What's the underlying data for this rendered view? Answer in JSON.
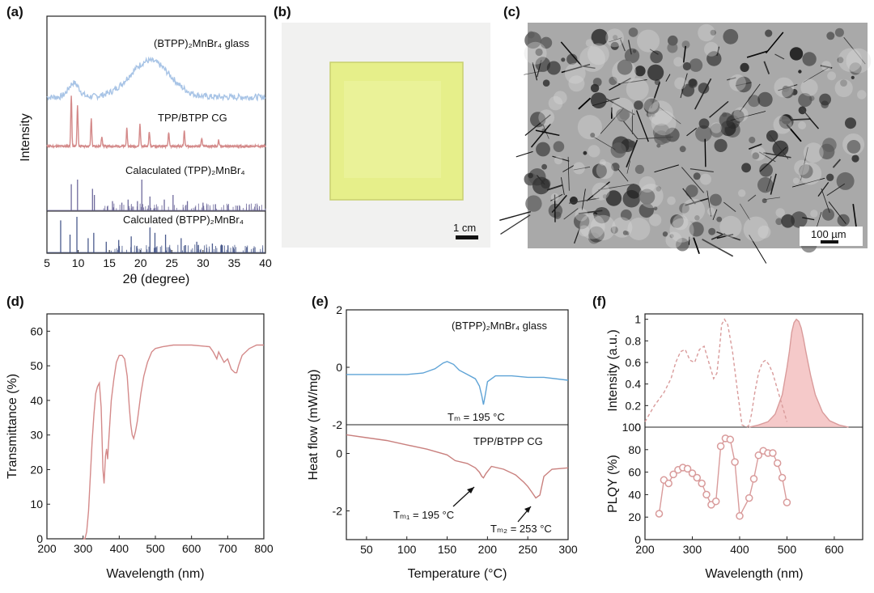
{
  "panel_labels": {
    "a": "(a)",
    "b": "(b)",
    "c": "(c)",
    "d": "(d)",
    "e": "(e)",
    "f": "(f)"
  },
  "colors": {
    "blue": "#a8c4e6",
    "red": "#d48a8a",
    "purple": "#6f6a9c",
    "navy": "#4a5a8c",
    "pink": "#d99b9b",
    "photo_yellow": "#e8f07a"
  },
  "photos": {
    "b_scale": "1 cm",
    "c_scale": "100 µm"
  },
  "chart_data": [
    {
      "id": "a",
      "type": "line",
      "xlabel": "2θ (degree)",
      "ylabel": "Intensity",
      "xlim": [
        5,
        40
      ],
      "xticks": [
        5,
        10,
        15,
        20,
        25,
        30,
        35,
        40
      ],
      "series": [
        {
          "name": "(BTPP)₂MnBr₄ glass",
          "kind": "broad",
          "peaks": [
            {
              "x": 9.3,
              "h": 0.35,
              "w": 1.2
            },
            {
              "x": 21.5,
              "h": 0.9,
              "w": 4.5
            }
          ]
        },
        {
          "name": "TPP/BTPP CG",
          "kind": "sharp",
          "peaks": [
            {
              "x": 8.9,
              "h": 1.0
            },
            {
              "x": 9.9,
              "h": 0.8
            },
            {
              "x": 12.1,
              "h": 0.55
            },
            {
              "x": 13.8,
              "h": 0.2
            },
            {
              "x": 17.8,
              "h": 0.35
            },
            {
              "x": 19.9,
              "h": 0.45
            },
            {
              "x": 21.4,
              "h": 0.3
            },
            {
              "x": 24.5,
              "h": 0.28
            },
            {
              "x": 27.0,
              "h": 0.3
            },
            {
              "x": 29.8,
              "h": 0.15
            },
            {
              "x": 32.5,
              "h": 0.12
            }
          ]
        },
        {
          "name": "Calaculated (TPP)₂MnBr₄",
          "kind": "stick",
          "peaks": [
            {
              "x": 8.9,
              "h": 0.85
            },
            {
              "x": 9.9,
              "h": 1.0
            },
            {
              "x": 12.3,
              "h": 0.7
            },
            {
              "x": 12.6,
              "h": 0.5
            },
            {
              "x": 15.5,
              "h": 0.3
            },
            {
              "x": 17.0,
              "h": 0.25
            },
            {
              "x": 18.0,
              "h": 0.35
            },
            {
              "x": 19.5,
              "h": 0.3
            },
            {
              "x": 20.2,
              "h": 1.0
            },
            {
              "x": 21.5,
              "h": 0.45
            },
            {
              "x": 23.8,
              "h": 0.35
            },
            {
              "x": 25.2,
              "h": 0.5
            },
            {
              "x": 27.5,
              "h": 0.3
            },
            {
              "x": 30.0,
              "h": 0.25
            },
            {
              "x": 32.0,
              "h": 0.2
            },
            {
              "x": 35.5,
              "h": 0.15
            }
          ]
        },
        {
          "name": "Calculated (BTPP)₂MnBr₄",
          "kind": "stick",
          "peaks": [
            {
              "x": 7.2,
              "h": 0.9
            },
            {
              "x": 8.7,
              "h": 0.5
            },
            {
              "x": 9.8,
              "h": 1.0
            },
            {
              "x": 11.6,
              "h": 0.4
            },
            {
              "x": 12.5,
              "h": 0.55
            },
            {
              "x": 14.5,
              "h": 0.3
            },
            {
              "x": 16.5,
              "h": 0.35
            },
            {
              "x": 18.5,
              "h": 0.45
            },
            {
              "x": 21.5,
              "h": 0.7
            },
            {
              "x": 22.3,
              "h": 0.55
            },
            {
              "x": 24.0,
              "h": 0.5
            },
            {
              "x": 26.5,
              "h": 0.4
            },
            {
              "x": 29.0,
              "h": 0.3
            },
            {
              "x": 31.5,
              "h": 0.25
            },
            {
              "x": 34.0,
              "h": 0.2
            },
            {
              "x": 37.0,
              "h": 0.15
            }
          ]
        }
      ]
    },
    {
      "id": "d",
      "type": "line",
      "xlabel": "Wavelength (nm)",
      "ylabel": "Transmittance (%)",
      "xlim": [
        200,
        800
      ],
      "ylim": [
        0,
        65
      ],
      "xticks": [
        200,
        300,
        400,
        500,
        600,
        700,
        800
      ],
      "yticks": [
        0,
        10,
        20,
        30,
        40,
        50,
        60
      ],
      "x": [
        300,
        305,
        310,
        315,
        320,
        325,
        330,
        335,
        340,
        345,
        350,
        355,
        358,
        362,
        365,
        368,
        372,
        378,
        385,
        392,
        400,
        408,
        415,
        422,
        428,
        432,
        436,
        440,
        445,
        450,
        455,
        460,
        468,
        478,
        490,
        500,
        520,
        550,
        600,
        650,
        660,
        670,
        675,
        680,
        690,
        700,
        710,
        720,
        725,
        730,
        740,
        760,
        780,
        800
      ],
      "y": [
        0,
        0,
        2,
        8,
        18,
        28,
        36,
        42,
        44,
        45,
        38,
        20,
        16,
        24,
        26,
        23,
        30,
        40,
        46,
        51,
        53,
        53,
        52,
        47,
        38,
        33,
        30,
        29,
        31,
        34,
        38,
        42,
        47,
        51,
        54,
        55,
        55.5,
        56,
        56,
        55.5,
        54,
        52,
        54,
        53,
        51,
        52,
        49,
        48,
        48,
        50,
        53,
        55,
        56,
        56
      ]
    },
    {
      "id": "e",
      "type": "line",
      "xlabel": "Temperature (°C)",
      "ylabel": "Heat flow (mW/mg)",
      "xlim": [
        25,
        300
      ],
      "xticks": [
        50,
        100,
        150,
        200,
        250,
        300
      ],
      "top": {
        "name": "(BTPP)₂MnBr₄ glass",
        "ylim": [
          -2,
          2
        ],
        "yticks": [
          -2,
          0,
          2
        ],
        "annotation": "Tₘ = 195 °C",
        "x": [
          25,
          50,
          75,
          100,
          120,
          135,
          145,
          150,
          158,
          165,
          175,
          185,
          190,
          193,
          195,
          197,
          200,
          210,
          230,
          250,
          270,
          300
        ],
        "y": [
          -0.25,
          -0.25,
          -0.25,
          -0.25,
          -0.2,
          -0.05,
          0.15,
          0.2,
          0.1,
          -0.1,
          -0.25,
          -0.4,
          -0.65,
          -1.0,
          -1.3,
          -1.0,
          -0.5,
          -0.3,
          -0.3,
          -0.35,
          -0.35,
          -0.45
        ]
      },
      "bottom": {
        "name": "TPP/BTPP CG",
        "ylim": [
          -3,
          1
        ],
        "yticks": [
          -2,
          0
        ],
        "annotations": [
          "Tₘ₁ = 195 °C",
          "Tₘ₂ = 253 °C"
        ],
        "x": [
          25,
          50,
          75,
          100,
          125,
          150,
          160,
          175,
          185,
          190,
          193,
          195,
          198,
          205,
          220,
          235,
          245,
          250,
          255,
          260,
          265,
          270,
          280,
          300
        ],
        "y": [
          0.65,
          0.55,
          0.45,
          0.3,
          0.15,
          -0.05,
          -0.25,
          -0.35,
          -0.5,
          -0.65,
          -0.8,
          -0.85,
          -0.7,
          -0.45,
          -0.55,
          -0.75,
          -1.0,
          -1.15,
          -1.35,
          -1.55,
          -1.45,
          -0.8,
          -0.55,
          -0.5
        ]
      }
    },
    {
      "id": "f",
      "type": "line",
      "xlabel": "Wavelength (nm)",
      "xlim": [
        200,
        660
      ],
      "xticks": [
        200,
        300,
        400,
        500,
        600
      ],
      "top": {
        "ylabel": "Intensity (a.u.)",
        "ylim": [
          0,
          1.05
        ],
        "yticks": [
          0,
          0.2,
          0.4,
          0.6,
          0.8,
          1.0
        ],
        "excitation": {
          "x": [
            200,
            220,
            240,
            255,
            265,
            275,
            285,
            295,
            305,
            315,
            325,
            335,
            345,
            352,
            358,
            362,
            368,
            375,
            385,
            395,
            405,
            415,
            420,
            425,
            432,
            440,
            448,
            455,
            462,
            470,
            480,
            490,
            500
          ],
          "y": [
            0.05,
            0.2,
            0.32,
            0.45,
            0.6,
            0.7,
            0.72,
            0.62,
            0.6,
            0.72,
            0.75,
            0.6,
            0.45,
            0.5,
            0.75,
            0.95,
            1.0,
            0.95,
            0.7,
            0.35,
            0.02,
            0.0,
            0.02,
            0.12,
            0.32,
            0.5,
            0.6,
            0.62,
            0.58,
            0.5,
            0.35,
            0.2,
            0.05
          ]
        },
        "emission": {
          "x": [
            420,
            440,
            460,
            475,
            490,
            500,
            505,
            510,
            515,
            520,
            525,
            530,
            535,
            540,
            550,
            560,
            575,
            590,
            610,
            630
          ],
          "y": [
            0,
            0.02,
            0.05,
            0.12,
            0.3,
            0.55,
            0.7,
            0.88,
            0.97,
            1.0,
            0.98,
            0.92,
            0.82,
            0.7,
            0.48,
            0.3,
            0.14,
            0.06,
            0.02,
            0.0
          ]
        }
      },
      "bottom": {
        "ylabel": "PLQY (%)",
        "ylim": [
          0,
          100
        ],
        "yticks": [
          0,
          20,
          40,
          60,
          80,
          100
        ],
        "x": [
          230,
          240,
          250,
          260,
          270,
          280,
          290,
          300,
          310,
          320,
          330,
          340,
          350,
          360,
          370,
          380,
          390,
          400,
          420,
          430,
          440,
          450,
          460,
          470,
          480,
          490,
          500
        ],
        "y": [
          23,
          53,
          50,
          58,
          62,
          64,
          63,
          59,
          55,
          50,
          40,
          31,
          34,
          83,
          90,
          89,
          69,
          21,
          37,
          54,
          75,
          79,
          77,
          77,
          68,
          55,
          33
        ]
      }
    }
  ]
}
